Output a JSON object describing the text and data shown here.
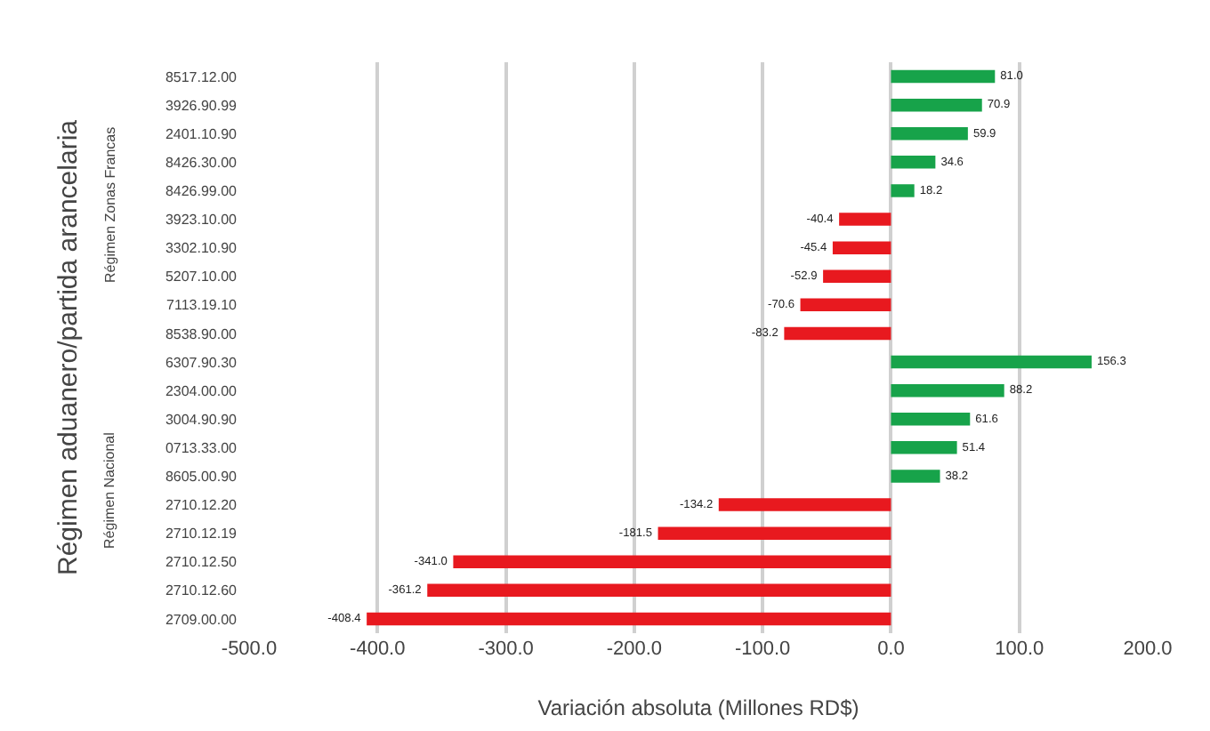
{
  "chart_data": {
    "type": "bar",
    "orientation": "horizontal",
    "ylabel": "Régimen aduanero/partida arancelaria",
    "xlabel": "Variación absoluta (Millones RD$)",
    "categories": [
      "8517.12.00",
      "3926.90.99",
      "2401.10.90",
      "8426.30.00",
      "8426.99.00",
      "3923.10.00",
      "3302.10.90",
      "5207.10.00",
      "7113.19.10",
      "8538.90.00",
      "6307.90.30",
      "2304.00.00",
      "3004.90.90",
      "0713.33.00",
      "8605.00.90",
      "2710.12.20",
      "2710.12.19",
      "2710.12.50",
      "2710.12.60",
      "2709.00.00"
    ],
    "values": [
      81.0,
      70.9,
      59.9,
      34.6,
      18.2,
      -40.4,
      -45.4,
      -52.9,
      -70.6,
      -83.2,
      156.3,
      88.2,
      61.6,
      51.4,
      38.2,
      -134.2,
      -181.5,
      -341.0,
      -361.2,
      -408.4
    ],
    "value_labels": [
      "81.0",
      "70.9",
      "59.9",
      "34.6",
      "18.2",
      "-40.4",
      "-45.4",
      "-52.9",
      "-70.6",
      "-83.2",
      "156.3",
      "88.2",
      "61.6",
      "51.4",
      "38.2",
      "-134.2",
      "-181.5",
      "-341.0",
      "-361.2",
      "-408.4"
    ],
    "colors": [
      "#17a34a",
      "#17a34a",
      "#17a34a",
      "#17a34a",
      "#17a34a",
      "#e8191f",
      "#e8191f",
      "#e8191f",
      "#e8191f",
      "#e8191f",
      "#17a34a",
      "#17a34a",
      "#17a34a",
      "#17a34a",
      "#17a34a",
      "#e8191f",
      "#e8191f",
      "#e8191f",
      "#e8191f",
      "#e8191f"
    ],
    "xlim": [
      -500,
      200
    ],
    "xticks": [
      {
        "value": -500,
        "label": "-500.0"
      },
      {
        "value": -400,
        "label": "-400.0"
      },
      {
        "value": -300,
        "label": "-300.0"
      },
      {
        "value": -200,
        "label": "-200.0"
      },
      {
        "value": -100,
        "label": "-100.0"
      },
      {
        "value": 0,
        "label": "0.0"
      },
      {
        "value": 100,
        "label": "100.0"
      },
      {
        "value": 200,
        "label": "200.0"
      }
    ],
    "grid": "x",
    "annotations": [
      "Régimen Zonas Francas",
      "Régimen Nacional"
    ]
  }
}
